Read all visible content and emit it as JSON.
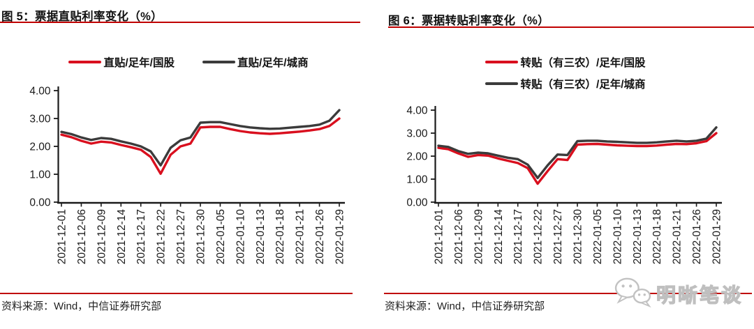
{
  "chart_data": [
    {
      "type": "line",
      "title": "图 5：票据直贴利率变化（%）",
      "categories": [
        "2021-12-01",
        "2021-12-06",
        "2021-12-09",
        "2021-12-14",
        "2021-12-17",
        "2021-12-22",
        "2021-12-27",
        "2021-12-30",
        "2022-01-05",
        "2022-01-10",
        "2022-01-13",
        "2022-01-18",
        "2022-01-21",
        "2022-01-26",
        "2022-01-29"
      ],
      "x_note": "series values sampled at each labeled date plus one midpoint between labels (29 points)",
      "ylim": [
        0,
        4
      ],
      "yticks": [
        "0.00",
        "1.00",
        "2.00",
        "3.00",
        "4.00"
      ],
      "grid": false,
      "legend_position": "top-center-row",
      "series": [
        {
          "name": "直贴/足年/国股",
          "color": "#d90f1e",
          "values": [
            2.42,
            2.33,
            2.2,
            2.1,
            2.17,
            2.14,
            2.05,
            1.97,
            1.88,
            1.62,
            1.02,
            1.7,
            2.0,
            2.1,
            2.68,
            2.7,
            2.7,
            2.62,
            2.55,
            2.5,
            2.47,
            2.45,
            2.47,
            2.5,
            2.53,
            2.57,
            2.62,
            2.73,
            3.0
          ]
        },
        {
          "name": "直贴/足年/城商",
          "color": "#3b3b3b",
          "values": [
            2.52,
            2.44,
            2.32,
            2.23,
            2.3,
            2.27,
            2.18,
            2.1,
            2.0,
            1.82,
            1.32,
            1.95,
            2.22,
            2.32,
            2.85,
            2.87,
            2.87,
            2.8,
            2.73,
            2.68,
            2.65,
            2.63,
            2.64,
            2.67,
            2.7,
            2.73,
            2.78,
            2.92,
            3.3
          ]
        }
      ],
      "source": "资料来源：Wind，中信证券研究部"
    },
    {
      "type": "line",
      "title": "图 6：票据转贴利率变化（%）",
      "categories": [
        "2021-12-01",
        "2021-12-06",
        "2021-12-09",
        "2021-12-14",
        "2021-12-17",
        "2021-12-22",
        "2021-12-27",
        "2021-12-30",
        "2022-01-05",
        "2022-01-10",
        "2022-01-13",
        "2022-01-18",
        "2022-01-21",
        "2022-01-26",
        "2022-01-29"
      ],
      "x_note": "series values sampled at each labeled date plus one midpoint between labels (29 points)",
      "ylim": [
        0,
        4
      ],
      "yticks": [
        "0.00",
        "1.00",
        "2.00",
        "3.00",
        "4.00"
      ],
      "grid": false,
      "legend_position": "top-center-column",
      "series": [
        {
          "name": "转贴（有三农）/足年/国股",
          "color": "#d90f1e",
          "values": [
            2.36,
            2.3,
            2.12,
            1.97,
            2.05,
            2.02,
            1.9,
            1.8,
            1.7,
            1.48,
            0.8,
            1.35,
            1.87,
            1.83,
            2.5,
            2.52,
            2.53,
            2.5,
            2.47,
            2.45,
            2.44,
            2.44,
            2.46,
            2.5,
            2.53,
            2.52,
            2.56,
            2.65,
            3.0
          ]
        },
        {
          "name": "转贴（有三农）/足年/城商",
          "color": "#3b3b3b",
          "values": [
            2.45,
            2.4,
            2.22,
            2.1,
            2.15,
            2.12,
            2.02,
            1.93,
            1.87,
            1.63,
            1.05,
            1.6,
            2.07,
            2.05,
            2.65,
            2.67,
            2.67,
            2.64,
            2.62,
            2.6,
            2.58,
            2.58,
            2.6,
            2.64,
            2.67,
            2.64,
            2.67,
            2.76,
            3.25
          ]
        }
      ],
      "source": "资料来源：Wind，中信证券研究部"
    }
  ],
  "watermark": {
    "icon": "wechat-icon",
    "text": "明晰笔谈",
    "color": "#c8c8c8"
  },
  "colors": {
    "rule_red": "#c00000",
    "line_red": "#d90f1e",
    "line_dark": "#3b3b3b",
    "axis": "#1a1a1a"
  }
}
